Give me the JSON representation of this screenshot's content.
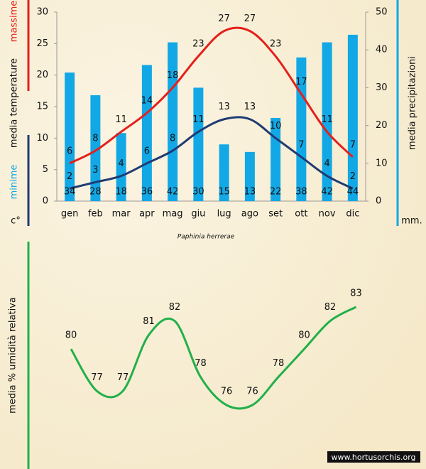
{
  "chart_data": [
    {
      "type": "combo",
      "title": "Paphinia herrerae",
      "ylabel": "media  temperature",
      "yunit": "c°",
      "y2label": "media  precipitazioni",
      "y2unit": "mm.",
      "categories": [
        "gen",
        "feb",
        "mar",
        "apr",
        "mag",
        "giu",
        "lug",
        "ago",
        "set",
        "ott",
        "nov",
        "dic"
      ],
      "series": [
        {
          "type": "bar",
          "axis": "y2",
          "color": "#12a8e6",
          "values": [
            34,
            28,
            18,
            36,
            42,
            30,
            15,
            13,
            22,
            38,
            42,
            44
          ]
        },
        {
          "name": "massime",
          "type": "line",
          "color": "#e3201c",
          "values": [
            6,
            8,
            11,
            14,
            18,
            23,
            27,
            27,
            23,
            17,
            11,
            7
          ]
        },
        {
          "name": "minime",
          "type": "line",
          "color": "#1f3b73",
          "values": [
            2,
            3,
            4,
            6,
            8,
            11,
            13,
            13,
            10,
            7,
            4,
            2
          ]
        }
      ],
      "ylim": [
        0,
        30
      ],
      "yticks": [
        0,
        5,
        10,
        15,
        20,
        25,
        30
      ],
      "y2lim": [
        0,
        50
      ],
      "y2ticks": [
        0,
        10,
        20,
        30,
        40,
        50
      ]
    },
    {
      "type": "line",
      "ylabel": "media %  umidità relativa",
      "color": "#22b04a",
      "values": [
        80,
        77,
        77,
        81,
        82,
        78,
        76,
        76,
        78,
        80,
        82,
        83
      ]
    }
  ],
  "footer": "www.hortusorchis.org"
}
